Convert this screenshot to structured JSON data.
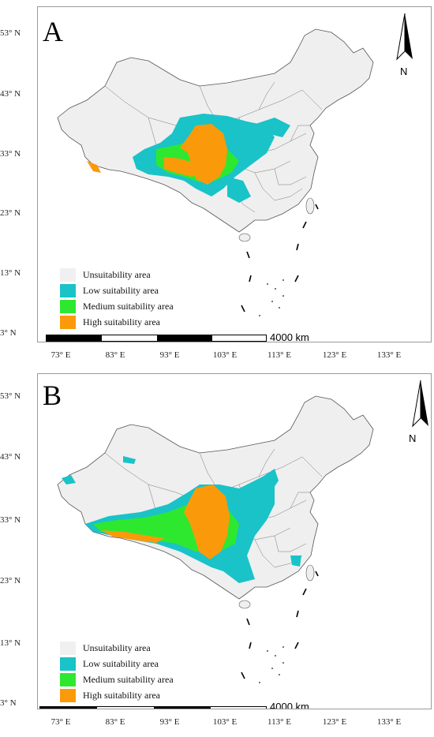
{
  "panels": [
    {
      "letter": "A",
      "lat_labels": [
        "53° N",
        "43° N",
        "33° N",
        "23° N",
        "13° N",
        "3° N"
      ],
      "lon_labels": [
        "73° E",
        "83° E",
        "93° E",
        "103° E",
        "113° E",
        "123° E",
        "133° E"
      ],
      "legend": [
        {
          "label": "Unsuitability area",
          "color": "#f0f0f0"
        },
        {
          "label": "Low suitability area",
          "color": "#19c3c8"
        },
        {
          "label": "Medium suitability area",
          "color": "#2ee830"
        },
        {
          "label": "High suitability area",
          "color": "#fa9a0a"
        }
      ],
      "scale_label": "4000 km",
      "north_label": "N"
    },
    {
      "letter": "B",
      "lat_labels": [
        "53° N",
        "43° N",
        "33° N",
        "23° N",
        "13° N",
        "3° N"
      ],
      "lon_labels": [
        "73° E",
        "83° E",
        "93° E",
        "103° E",
        "113° E",
        "123° E",
        "133° E"
      ],
      "legend": [
        {
          "label": "Unsuitability area",
          "color": "#f0f0f0"
        },
        {
          "label": "Low suitability area",
          "color": "#19c3c8"
        },
        {
          "label": "Medium suitability area",
          "color": "#2ee830"
        },
        {
          "label": "High suitability area",
          "color": "#fa9a0a"
        }
      ],
      "scale_label": "4000 km",
      "north_label": "N"
    }
  ]
}
